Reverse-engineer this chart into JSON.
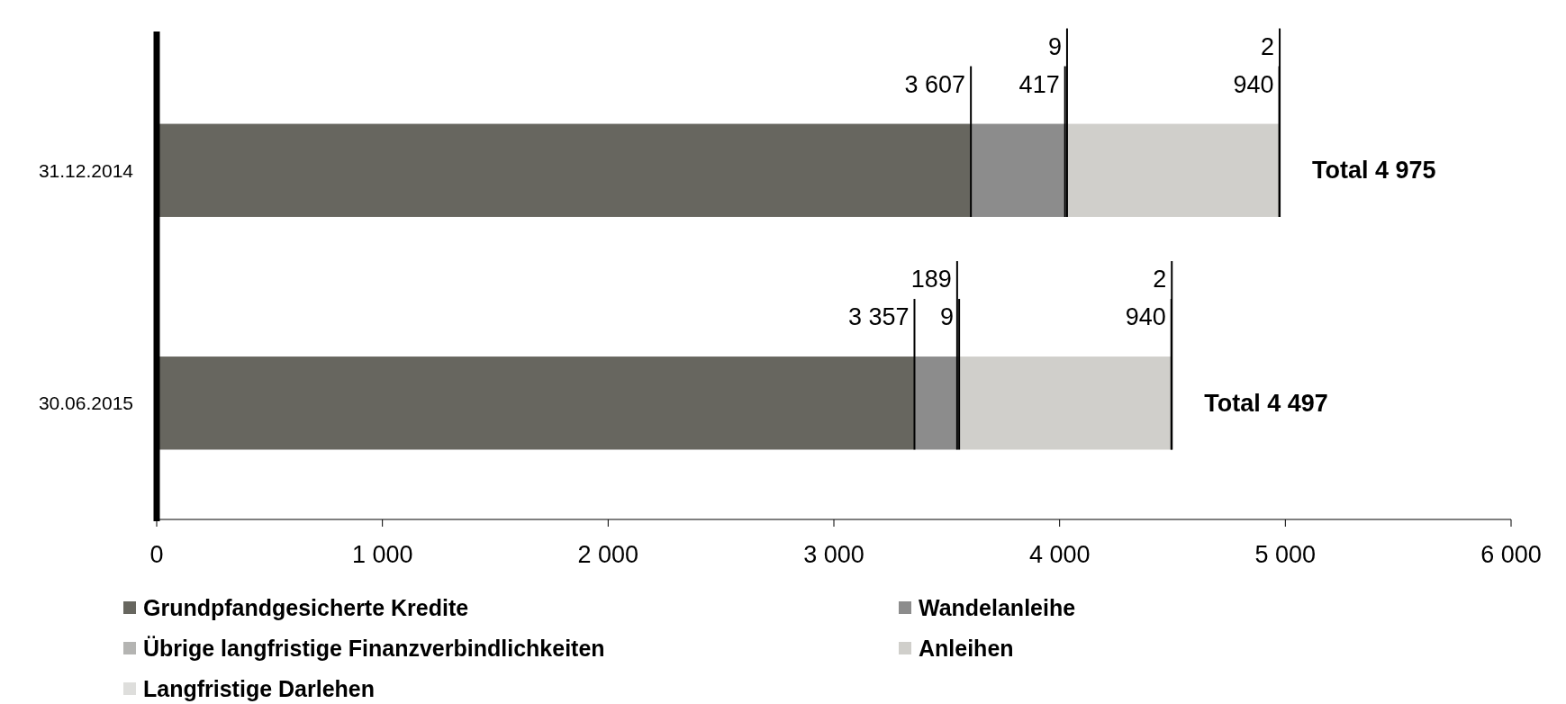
{
  "chart_data": {
    "type": "bar",
    "orientation": "horizontal",
    "stacked": true,
    "categories": [
      "31.12.2014",
      "30.06.2015"
    ],
    "series": [
      {
        "name": "Grundpfandgesicherte Kredite",
        "color": "#67665f",
        "values": [
          3607,
          3357
        ],
        "value_labels": [
          "3 607",
          "3 357"
        ]
      },
      {
        "name": "Wandelanleihe",
        "color": "#8c8c8c",
        "values": [
          417,
          189
        ],
        "value_labels": [
          "417",
          "189"
        ]
      },
      {
        "name": "Übrige langfristige Finanzverbindlichkeiten",
        "color": "#b4b4b2",
        "values": [
          9,
          9
        ],
        "value_labels": [
          "9",
          "9"
        ]
      },
      {
        "name": "Anleihen",
        "color": "#d0cfcb",
        "values": [
          940,
          940
        ],
        "value_labels": [
          "940",
          "940"
        ]
      },
      {
        "name": "Langfristige Darlehen",
        "color": "#dededc",
        "values": [
          2,
          2
        ],
        "value_labels": [
          "2",
          "2"
        ]
      }
    ],
    "totals": [
      "Total 4 975",
      "Total 4 497"
    ],
    "xlim": [
      0,
      6000
    ],
    "xticks": [
      0,
      {
        "value": 1000,
        "label": "1 000"
      },
      {
        "value": 2000,
        "label": "2 000"
      },
      {
        "value": 3000,
        "label": "3 000"
      },
      {
        "value": 4000,
        "label": "4 000"
      },
      {
        "value": 5000,
        "label": "5 000"
      },
      {
        "value": 6000,
        "label": "6 000"
      }
    ],
    "grid": false,
    "legend": "bottom"
  }
}
